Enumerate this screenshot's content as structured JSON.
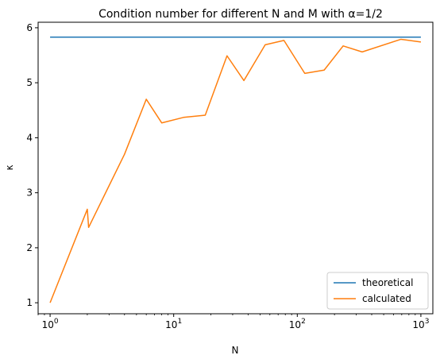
{
  "chart_data": {
    "type": "line",
    "title": "Condition number for different N and M with α=1/2",
    "xlabel": "N",
    "ylabel": "κ",
    "xscale": "log",
    "xlim": [
      0.8,
      1250
    ],
    "ylim": [
      0.8,
      6.1
    ],
    "xticks": [
      {
        "value": 1,
        "base": "10",
        "exp": "0"
      },
      {
        "value": 10,
        "base": "10",
        "exp": "1"
      },
      {
        "value": 100,
        "base": "10",
        "exp": "2"
      },
      {
        "value": 1000,
        "base": "10",
        "exp": "3"
      }
    ],
    "yticks": [
      1,
      2,
      3,
      4,
      5,
      6
    ],
    "grid": false,
    "legend_position": "lower-right",
    "series": [
      {
        "name": "theoretical",
        "color": "#1f77b4",
        "x": [
          1,
          1000
        ],
        "y": [
          5.83,
          5.83
        ]
      },
      {
        "name": "calculated",
        "color": "#ff7f0e",
        "x": [
          1,
          2,
          2.05,
          4,
          6,
          8,
          12,
          18,
          27,
          37,
          55,
          78,
          115,
          165,
          235,
          335,
          690,
          1000
        ],
        "y": [
          1.0,
          2.7,
          2.37,
          3.7,
          4.7,
          4.27,
          4.37,
          4.41,
          5.49,
          5.04,
          5.69,
          5.77,
          5.17,
          5.23,
          5.67,
          5.56,
          5.79,
          5.74
        ]
      }
    ]
  }
}
